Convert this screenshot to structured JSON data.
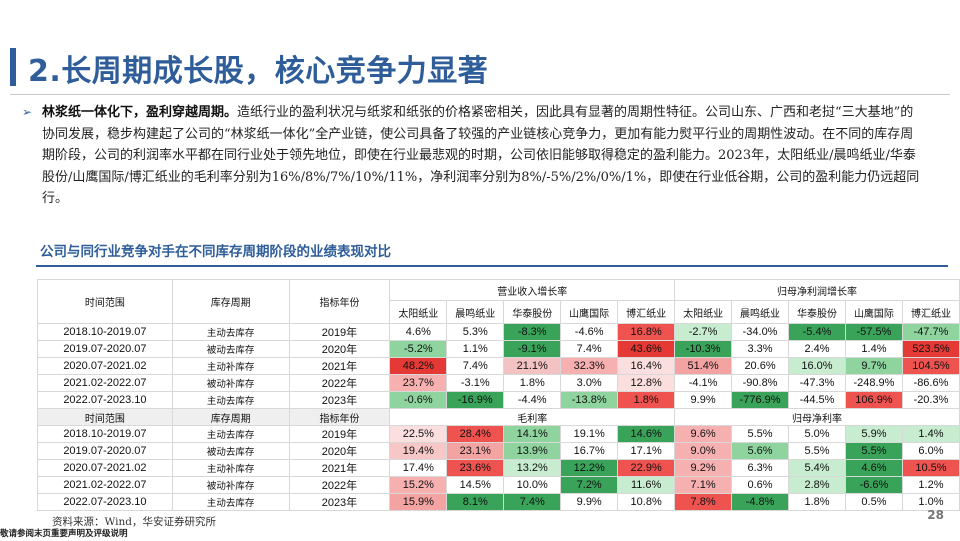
{
  "title": "2.长周期成长股，核心竞争力显著",
  "paragraph": {
    "lead": "林浆纸一体化下，盈利穿越周期。",
    "body": "造纸行业的盈利状况与纸浆和纸张的价格紧密相关，因此具有显著的周期性特征。公司山东、广西和老挝“三大基地”的协同发展，稳步构建起了公司的“林浆纸一体化”全产业链，使公司具备了较强的产业链核心竞争力，更加有能力熨平行业的周期性波动。在不同的库存周期阶段，公司的利润率水平都在同行业处于领先地位，即使在行业最悲观的时期，公司依旧能够取得稳定的盈利能力。2023年，太阳纸业/晨鸣纸业/华泰股份/山鹰国际/博汇纸业的毛利率分别为16%/8%/7%/10%/11%，净利润率分别为8%/-5%/2%/0%/1%，即使在行业低谷期，公司的盈利能力仍远超同行。"
  },
  "section_title": "公司与同行业竞争对手在不同库存周期阶段的业绩表现对比",
  "table": {
    "col_period": "时间范围",
    "col_stage": "库存周期",
    "col_year": "指标年份",
    "group_revenue": "营业收入增长率",
    "group_profit": "归母净利润增长率",
    "group_gross": "毛利率",
    "group_net": "归母净利率",
    "companies": [
      "太阳纸业",
      "晨鸣纸业",
      "华泰股份",
      "山鹰国际",
      "博汇纸业"
    ],
    "top_rows": [
      {
        "period": "2018.10-2019.07",
        "stage": "主动去库存",
        "year": "2019年",
        "rev": [
          "4.6%",
          "5.3%",
          "-8.3%",
          "-4.6%",
          "16.8%"
        ],
        "prof": [
          "-2.7%",
          "-34.0%",
          "-5.4%",
          "-57.5%",
          "-47.7%"
        ]
      },
      {
        "period": "2019.07-2020.07",
        "stage": "被动去库存",
        "year": "2020年",
        "rev": [
          "-5.2%",
          "1.1%",
          "-9.1%",
          "7.4%",
          "43.6%"
        ],
        "prof": [
          "-10.3%",
          "3.3%",
          "2.4%",
          "1.4%",
          "523.5%"
        ]
      },
      {
        "period": "2020.07-2021.02",
        "stage": "主动补库存",
        "year": "2021年",
        "rev": [
          "48.2%",
          "7.4%",
          "21.1%",
          "32.3%",
          "16.4%"
        ],
        "prof": [
          "51.4%",
          "20.6%",
          "16.0%",
          "9.7%",
          "104.5%"
        ]
      },
      {
        "period": "2021.02-2022.07",
        "stage": "被动补库存",
        "year": "2022年",
        "rev": [
          "23.7%",
          "-3.1%",
          "1.8%",
          "3.0%",
          "12.8%"
        ],
        "prof": [
          "-4.1%",
          "-90.8%",
          "-47.3%",
          "-248.9%",
          "-86.6%"
        ]
      },
      {
        "period": "2022.07-2023.10",
        "stage": "主动去库存",
        "year": "2023年",
        "rev": [
          "-0.6%",
          "-16.9%",
          "-4.4%",
          "-13.8%",
          "1.8%"
        ],
        "prof": [
          "9.9%",
          "-776.9%",
          "-44.5%",
          "106.9%",
          "-20.3%"
        ]
      }
    ],
    "bottom_rows": [
      {
        "period": "2018.10-2019.07",
        "stage": "主动去库存",
        "year": "2019年",
        "gross": [
          "22.5%",
          "28.4%",
          "14.1%",
          "19.1%",
          "14.6%"
        ],
        "net": [
          "9.6%",
          "5.5%",
          "5.0%",
          "5.9%",
          "1.4%"
        ]
      },
      {
        "period": "2019.07-2020.07",
        "stage": "被动去库存",
        "year": "2020年",
        "gross": [
          "19.4%",
          "23.1%",
          "13.9%",
          "16.7%",
          "17.1%"
        ],
        "net": [
          "9.0%",
          "5.6%",
          "5.5%",
          "5.5%",
          "6.0%"
        ]
      },
      {
        "period": "2020.07-2021.02",
        "stage": "主动补库存",
        "year": "2021年",
        "gross": [
          "17.4%",
          "23.6%",
          "13.2%",
          "12.2%",
          "22.9%"
        ],
        "net": [
          "9.2%",
          "6.3%",
          "5.4%",
          "4.6%",
          "10.5%"
        ]
      },
      {
        "period": "2021.02-2022.07",
        "stage": "被动补库存",
        "year": "2022年",
        "gross": [
          "15.2%",
          "14.5%",
          "10.0%",
          "7.2%",
          "11.6%"
        ],
        "net": [
          "7.1%",
          "0.6%",
          "2.8%",
          "-6.6%",
          "1.2%"
        ]
      },
      {
        "period": "2022.07-2023.10",
        "stage": "主动去库存",
        "year": "2023年",
        "gross": [
          "15.9%",
          "8.1%",
          "7.4%",
          "9.9%",
          "10.8%"
        ],
        "net": [
          "7.8%",
          "-4.8%",
          "1.8%",
          "0.5%",
          "1.0%"
        ]
      }
    ],
    "colors": {
      "top_rev": [
        [
          "#ffffff",
          "#ffffff",
          "#3aa35a",
          "#ffffff",
          "#ef5350"
        ],
        [
          "#8fd49f",
          "#ffffff",
          "#3aa35a",
          "#ffffff",
          "#e53935"
        ],
        [
          "#e53935",
          "#ffffff",
          "#f3c2c2",
          "#f7b0b0",
          "#fbdede"
        ],
        [
          "#f7b0b0",
          "#ffffff",
          "#ffffff",
          "#ffffff",
          "#fbdede"
        ],
        [
          "#8fd49f",
          "#3aa35a",
          "#ffffff",
          "#8fd49f",
          "#ef5350"
        ]
      ],
      "top_prof": [
        [
          "#c8ecd0",
          "#ffffff",
          "#3aa35a",
          "#3aa35a",
          "#8fd49f"
        ],
        [
          "#3aa35a",
          "#ffffff",
          "#ffffff",
          "#ffffff",
          "#e53935"
        ],
        [
          "#f4a3a3",
          "#ffffff",
          "#c8ecd0",
          "#8fd49f",
          "#ef5350"
        ],
        [
          "#ffffff",
          "#ffffff",
          "#ffffff",
          "#ffffff",
          "#ffffff"
        ],
        [
          "#ffffff",
          "#3aa35a",
          "#ffffff",
          "#ef5350",
          "#ffffff"
        ]
      ],
      "bottom_gross": [
        [
          "#fbdede",
          "#ef5350",
          "#8fd49f",
          "#ffffff",
          "#3aa35a"
        ],
        [
          "#f7c6c6",
          "#f4a3a3",
          "#8fd49f",
          "#ffffff",
          "#ffffff"
        ],
        [
          "#ffffff",
          "#ef5350",
          "#c8ecd0",
          "#3aa35a",
          "#ef5350"
        ],
        [
          "#f7b0b0",
          "#ffffff",
          "#ffffff",
          "#3aa35a",
          "#c8ecd0"
        ],
        [
          "#f4a3a3",
          "#3aa35a",
          "#3aa35a",
          "#ffffff",
          "#ffffff"
        ]
      ],
      "bottom_net": [
        [
          "#f7b0b0",
          "#ffffff",
          "#ffffff",
          "#c8ecd0",
          "#c8ecd0"
        ],
        [
          "#f7b0b0",
          "#8fd49f",
          "#ffffff",
          "#3aa35a",
          "#ffffff"
        ],
        [
          "#f7b0b0",
          "#ffffff",
          "#c8ecd0",
          "#3aa35a",
          "#ef5350"
        ],
        [
          "#f7b0b0",
          "#ffffff",
          "#c8ecd0",
          "#3aa35a",
          "#ffffff"
        ],
        [
          "#ef5350",
          "#3aa35a",
          "#ffffff",
          "#ffffff",
          "#ffffff"
        ]
      ]
    }
  },
  "source": "资料来源：Wind，华安证券研究所",
  "footer": "敬请参阅末页重要声明及评级说明",
  "page_number": "28"
}
